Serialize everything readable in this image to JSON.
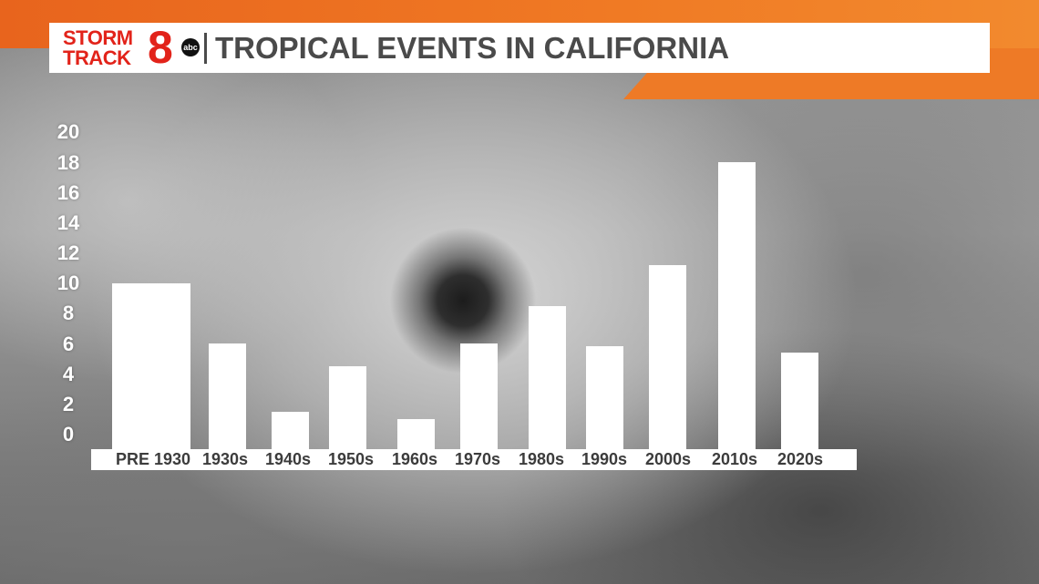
{
  "header": {
    "logo_line1": "STORM",
    "logo_line2": "TRACK",
    "logo_number": "8",
    "logo_network": "abc",
    "title": "TROPICAL EVENTS IN CALIFORNIA"
  },
  "colors": {
    "brand_red": "#e2231a",
    "accent_orange": "#ee7a26",
    "bar_fill": "#ffffff",
    "title_text": "#4a4a4a"
  },
  "chart_data": {
    "type": "bar",
    "title": "TROPICAL EVENTS IN CALIFORNIA",
    "xlabel": "",
    "ylabel": "",
    "categories": [
      "PRE 1930",
      "1930s",
      "1940s",
      "1950s",
      "1960s",
      "1970s",
      "1980s",
      "1990s",
      "2000s",
      "2010s",
      "2020s"
    ],
    "values": [
      11,
      7,
      2.5,
      5.5,
      2,
      7,
      9.5,
      6.8,
      12.2,
      19,
      6.4
    ],
    "yticks": [
      "0",
      "2",
      "4",
      "6",
      "8",
      "10",
      "12",
      "14",
      "16",
      "18",
      "20"
    ],
    "ylim": [
      0,
      20
    ],
    "grid": false,
    "legend": "none"
  }
}
